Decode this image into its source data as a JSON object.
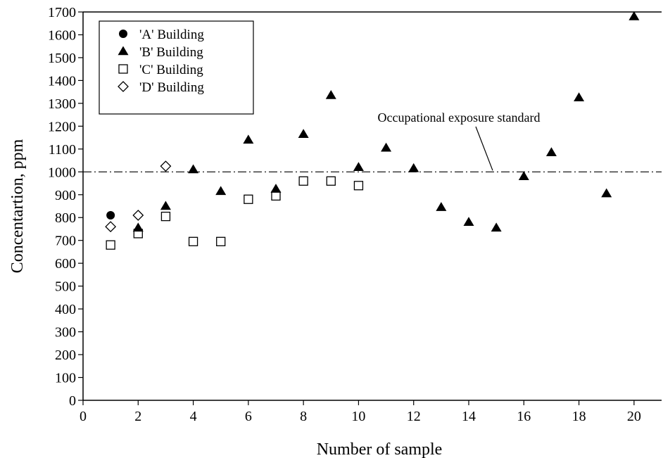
{
  "chart_data": {
    "type": "scatter",
    "xlabel": "Number of sample",
    "ylabel": "Concentartion, ppm",
    "xlim": [
      0,
      21
    ],
    "ylim": [
      0,
      1700
    ],
    "x_ticks": [
      0,
      2,
      4,
      6,
      8,
      10,
      12,
      14,
      16,
      18,
      20
    ],
    "y_ticks": [
      0,
      100,
      200,
      300,
      400,
      500,
      600,
      700,
      800,
      900,
      1000,
      1100,
      1200,
      1300,
      1400,
      1500,
      1600,
      1700
    ],
    "grid": false,
    "legend_position": "top-left",
    "reference_line": {
      "label": "Occupational exposure standard",
      "y": 1000,
      "style": "dash-dot"
    },
    "series": [
      {
        "name": "'A' Building",
        "marker": "filled-circle",
        "color": "#000000",
        "points": [
          {
            "x": 1,
            "y": 810
          }
        ]
      },
      {
        "name": "'B' Building",
        "marker": "filled-triangle",
        "color": "#000000",
        "points": [
          {
            "x": 2,
            "y": 755
          },
          {
            "x": 3,
            "y": 850
          },
          {
            "x": 4,
            "y": 1010
          },
          {
            "x": 5,
            "y": 915
          },
          {
            "x": 6,
            "y": 1140
          },
          {
            "x": 7,
            "y": 925
          },
          {
            "x": 8,
            "y": 1165
          },
          {
            "x": 9,
            "y": 1335
          },
          {
            "x": 10,
            "y": 1020
          },
          {
            "x": 11,
            "y": 1105
          },
          {
            "x": 12,
            "y": 1015
          },
          {
            "x": 13,
            "y": 845
          },
          {
            "x": 14,
            "y": 780
          },
          {
            "x": 15,
            "y": 755
          },
          {
            "x": 16,
            "y": 980
          },
          {
            "x": 17,
            "y": 1085
          },
          {
            "x": 18,
            "y": 1325
          },
          {
            "x": 19,
            "y": 905
          },
          {
            "x": 20,
            "y": 1680
          }
        ]
      },
      {
        "name": "'C' Building",
        "marker": "open-square",
        "color": "#000000",
        "points": [
          {
            "x": 1,
            "y": 680
          },
          {
            "x": 2,
            "y": 730
          },
          {
            "x": 3,
            "y": 805
          },
          {
            "x": 4,
            "y": 695
          },
          {
            "x": 5,
            "y": 695
          },
          {
            "x": 6,
            "y": 880
          },
          {
            "x": 7,
            "y": 895
          },
          {
            "x": 8,
            "y": 960
          },
          {
            "x": 9,
            "y": 960
          },
          {
            "x": 10,
            "y": 940
          }
        ]
      },
      {
        "name": "'D' Building",
        "marker": "open-diamond",
        "color": "#000000",
        "points": [
          {
            "x": 1,
            "y": 760
          },
          {
            "x": 2,
            "y": 810
          },
          {
            "x": 3,
            "y": 1025
          }
        ]
      }
    ]
  }
}
